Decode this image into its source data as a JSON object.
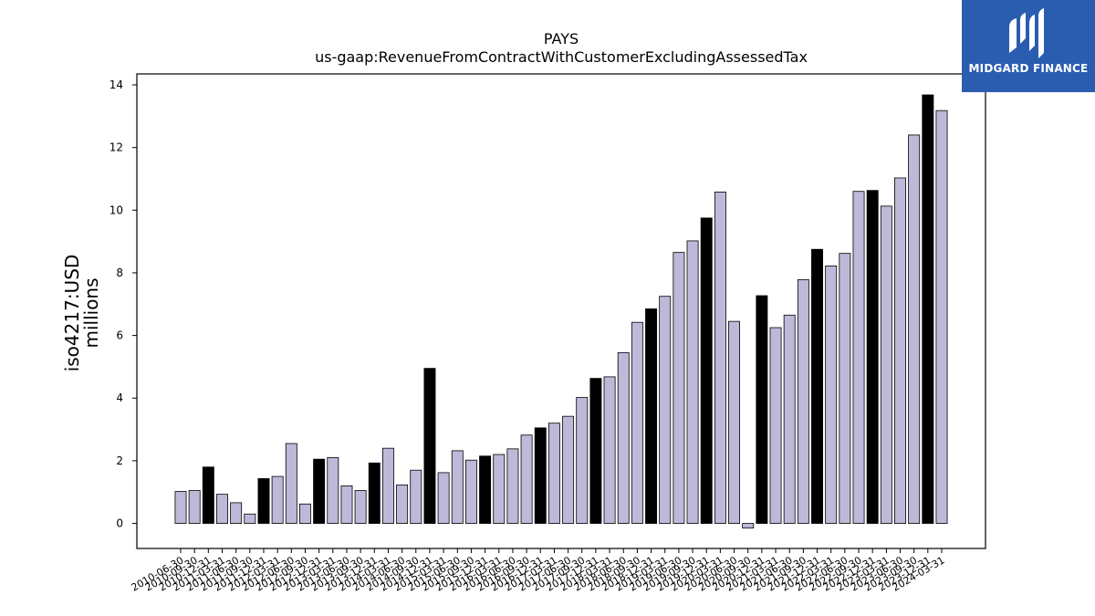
{
  "brand": {
    "name": "MIDGARD FINANCE",
    "bg_color": "#2a5db0"
  },
  "chart_data": {
    "type": "bar",
    "title": "PAYS",
    "subtitle": "us-gaap:RevenueFromContractWithCustomerExcludingAssessedTax",
    "ylabel_line1": "iso4217:USD",
    "ylabel_line2": "millions",
    "xlabel": "",
    "ylim": [
      -0.8,
      14.35
    ],
    "yticks": [
      0,
      2,
      4,
      6,
      8,
      10,
      12,
      14
    ],
    "grid": false,
    "colors": {
      "quarter": "#bcb9d9",
      "annual": "#000000"
    },
    "categories": [
      "2010-06-30",
      "2010-09-30",
      "2010-12-31",
      "2011-03-31",
      "2011-06-30",
      "2011-09-30",
      "2011-12-31",
      "2012-03-31",
      "2012-06-30",
      "2012-09-30",
      "2012-12-31",
      "2013-03-31",
      "2013-06-30",
      "2013-09-30",
      "2013-12-31",
      "2014-03-31",
      "2014-06-30",
      "2014-09-30",
      "2014-12-31",
      "2015-03-31",
      "2015-06-30",
      "2015-09-30",
      "2015-12-31",
      "2016-03-31",
      "2016-06-30",
      "2016-09-30",
      "2016-12-31",
      "2017-03-31",
      "2017-06-30",
      "2017-09-30",
      "2017-12-31",
      "2018-03-31",
      "2018-06-30",
      "2018-09-30",
      "2018-12-31",
      "2019-03-31",
      "2019-06-30",
      "2019-09-30",
      "2019-12-31",
      "2020-03-31",
      "2020-06-30",
      "2020-09-30",
      "2020-12-31",
      "2021-03-31",
      "2021-06-30",
      "2021-09-30",
      "2021-12-31",
      "2022-03-31",
      "2022-06-30",
      "2022-09-30",
      "2022-12-31",
      "2023-03-31",
      "2023-06-30",
      "2023-09-30",
      "2023-12-31",
      "2024-03-31"
    ],
    "values": [
      1.02,
      1.05,
      1.8,
      0.93,
      0.66,
      0.3,
      1.43,
      1.5,
      2.55,
      0.62,
      2.05,
      2.1,
      1.2,
      1.05,
      1.93,
      2.4,
      1.23,
      1.7,
      4.95,
      1.62,
      2.32,
      2.02,
      2.15,
      2.2,
      2.38,
      2.82,
      3.05,
      3.2,
      3.42,
      4.02,
      4.63,
      4.68,
      5.45,
      6.42,
      6.85,
      7.25,
      8.65,
      9.02,
      9.75,
      10.58,
      6.45,
      -0.15,
      7.27,
      6.25,
      6.65,
      7.78,
      8.75,
      8.22,
      8.62,
      10.6,
      10.63,
      10.13,
      11.03,
      12.4,
      13.68,
      13.18
    ],
    "annual_flags": [
      0,
      0,
      1,
      0,
      0,
      0,
      1,
      0,
      0,
      0,
      1,
      0,
      0,
      0,
      1,
      0,
      0,
      0,
      1,
      0,
      0,
      0,
      1,
      0,
      0,
      0,
      1,
      0,
      0,
      0,
      1,
      0,
      0,
      0,
      1,
      0,
      0,
      0,
      1,
      0,
      0,
      0,
      1,
      0,
      0,
      0,
      1,
      0,
      0,
      0,
      1,
      0,
      0,
      0,
      1,
      0
    ]
  }
}
